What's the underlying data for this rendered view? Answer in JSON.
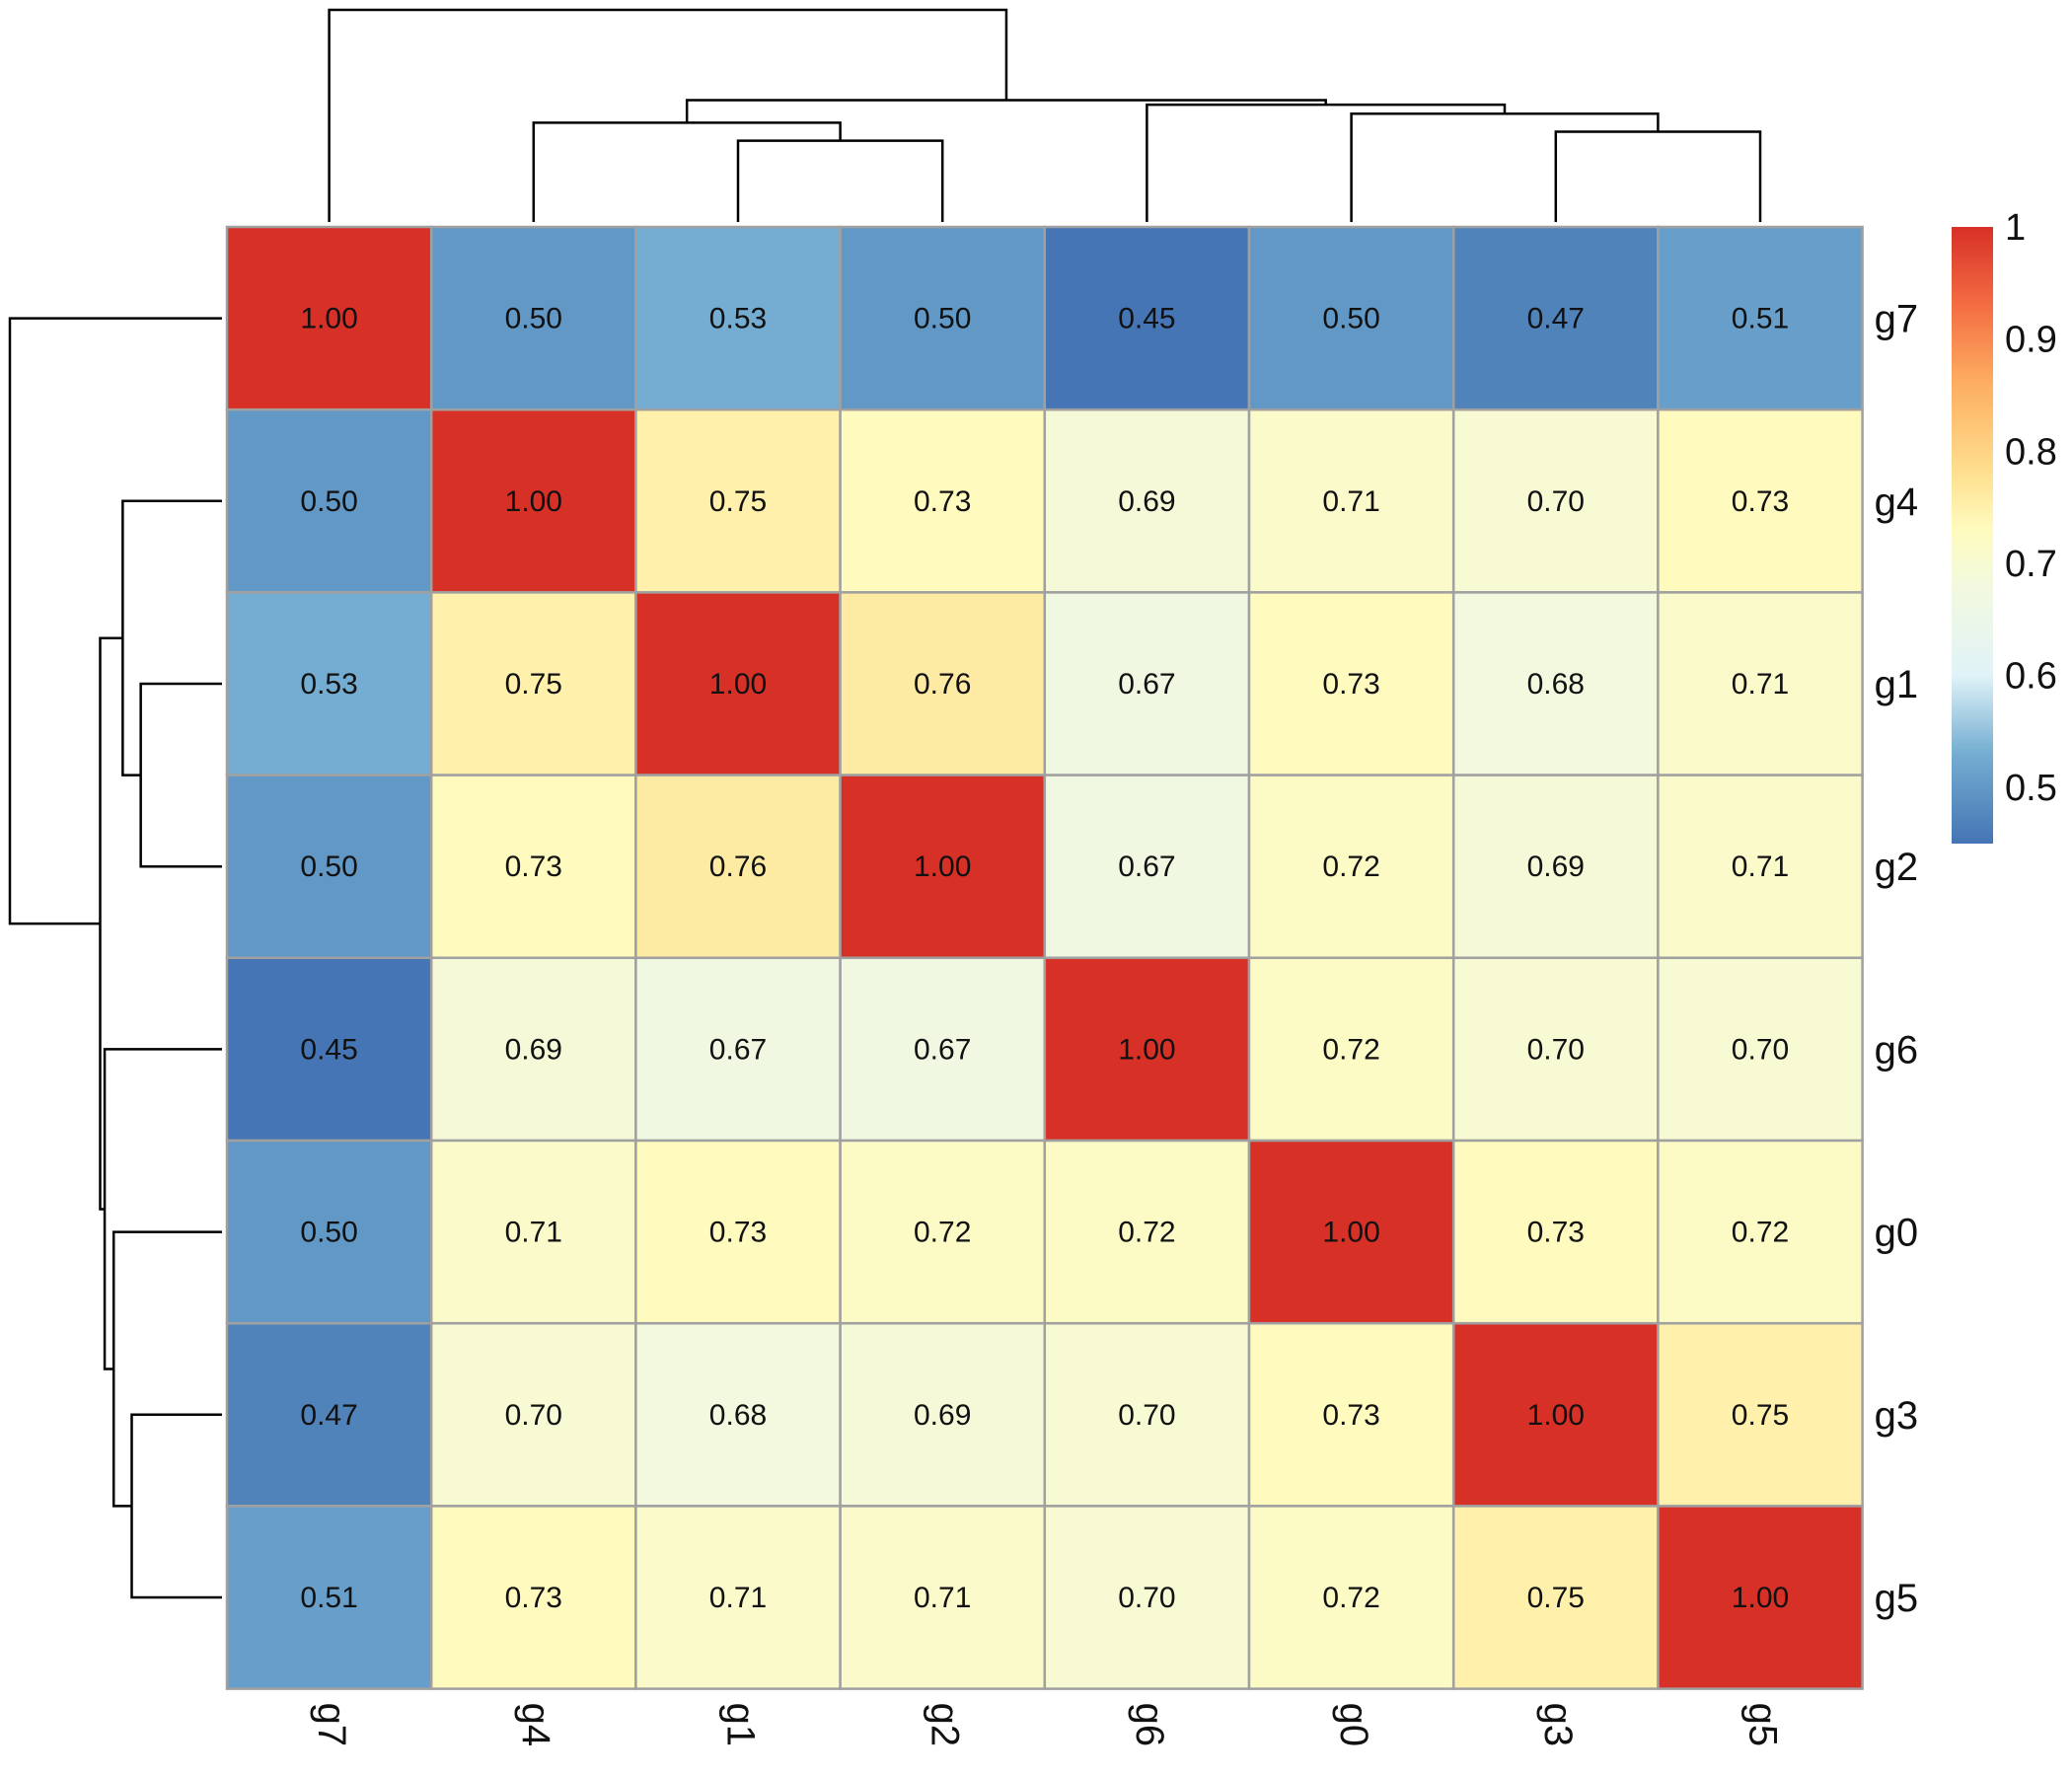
{
  "chart_data": {
    "type": "heatmap",
    "rows": [
      "g7",
      "g4",
      "g1",
      "g2",
      "g6",
      "g0",
      "g3",
      "g5"
    ],
    "cols": [
      "g7",
      "g4",
      "g1",
      "g2",
      "g6",
      "g0",
      "g3",
      "g5"
    ],
    "values": [
      [
        1.0,
        0.5,
        0.53,
        0.5,
        0.45,
        0.5,
        0.47,
        0.51
      ],
      [
        0.5,
        1.0,
        0.75,
        0.73,
        0.69,
        0.71,
        0.7,
        0.73
      ],
      [
        0.53,
        0.75,
        1.0,
        0.76,
        0.67,
        0.73,
        0.68,
        0.71
      ],
      [
        0.5,
        0.73,
        0.76,
        1.0,
        0.67,
        0.72,
        0.69,
        0.71
      ],
      [
        0.45,
        0.69,
        0.67,
        0.67,
        1.0,
        0.72,
        0.7,
        0.7
      ],
      [
        0.5,
        0.71,
        0.73,
        0.72,
        0.72,
        1.0,
        0.73,
        0.72
      ],
      [
        0.47,
        0.7,
        0.68,
        0.69,
        0.7,
        0.73,
        1.0,
        0.75
      ],
      [
        0.51,
        0.73,
        0.71,
        0.71,
        0.7,
        0.72,
        0.75,
        1.0
      ]
    ],
    "cell_labels": [
      [
        "1.00",
        "0.50",
        "0.53",
        "0.50",
        "0.45",
        "0.50",
        "0.47",
        "0.51"
      ],
      [
        "0.50",
        "1.00",
        "0.75",
        "0.73",
        "0.69",
        "0.71",
        "0.70",
        "0.73"
      ],
      [
        "0.53",
        "0.75",
        "1.00",
        "0.76",
        "0.67",
        "0.73",
        "0.68",
        "0.71"
      ],
      [
        "0.50",
        "0.73",
        "0.76",
        "1.00",
        "0.67",
        "0.72",
        "0.69",
        "0.71"
      ],
      [
        "0.45",
        "0.69",
        "0.67",
        "0.67",
        "1.00",
        "0.72",
        "0.70",
        "0.70"
      ],
      [
        "0.50",
        "0.71",
        "0.73",
        "0.72",
        "0.72",
        "1.00",
        "0.73",
        "0.72"
      ],
      [
        "0.47",
        "0.70",
        "0.68",
        "0.69",
        "0.70",
        "0.73",
        "1.00",
        "0.75"
      ],
      [
        "0.51",
        "0.73",
        "0.71",
        "0.71",
        "0.70",
        "0.72",
        "0.75",
        "1.00"
      ]
    ],
    "color_scale": {
      "min": 0.45,
      "max": 1.0,
      "stops": [
        {
          "value": 0.45,
          "color": "#4575b4"
        },
        {
          "value": 0.53,
          "color": "#74add1"
        },
        {
          "value": 0.6,
          "color": "#e0f3f8"
        },
        {
          "value": 0.68,
          "color": "#f2f9de"
        },
        {
          "value": 0.73,
          "color": "#fffbbf"
        },
        {
          "value": 0.78,
          "color": "#fee090"
        },
        {
          "value": 0.86,
          "color": "#fdae61"
        },
        {
          "value": 0.93,
          "color": "#f46d43"
        },
        {
          "value": 1.0,
          "color": "#d73027"
        }
      ]
    },
    "legend": {
      "position": "right",
      "ticks": [
        {
          "value": 1.0,
          "label": "1"
        },
        {
          "value": 0.9,
          "label": "0.9"
        },
        {
          "value": 0.8,
          "label": "0.8"
        },
        {
          "value": 0.7,
          "label": "0.7"
        },
        {
          "value": 0.6,
          "label": "0.6"
        },
        {
          "value": 0.5,
          "label": "0.5"
        }
      ]
    },
    "cell_border_color": "#a0a0a0",
    "row_dendrogram": {
      "merges": [
        {
          "a": 2,
          "b": 3,
          "height": 0.09
        },
        {
          "a": 6,
          "b": 7,
          "height": 0.1
        },
        {
          "a": 1,
          "b": "m0",
          "height": 0.11
        },
        {
          "a": 5,
          "b": "m1",
          "height": 0.12
        },
        {
          "a": 4,
          "b": "m3",
          "height": 0.13
        },
        {
          "a": "m2",
          "b": "m4",
          "height": 0.135
        },
        {
          "a": 0,
          "b": "m5",
          "height": 0.235
        }
      ]
    },
    "col_dendrogram": {
      "merges": [
        {
          "a": 2,
          "b": 3,
          "height": 0.09
        },
        {
          "a": 6,
          "b": 7,
          "height": 0.1
        },
        {
          "a": 1,
          "b": "m0",
          "height": 0.11
        },
        {
          "a": 5,
          "b": "m1",
          "height": 0.12
        },
        {
          "a": 4,
          "b": "m3",
          "height": 0.13
        },
        {
          "a": "m2",
          "b": "m4",
          "height": 0.135
        },
        {
          "a": 0,
          "b": "m5",
          "height": 0.235
        }
      ]
    }
  }
}
